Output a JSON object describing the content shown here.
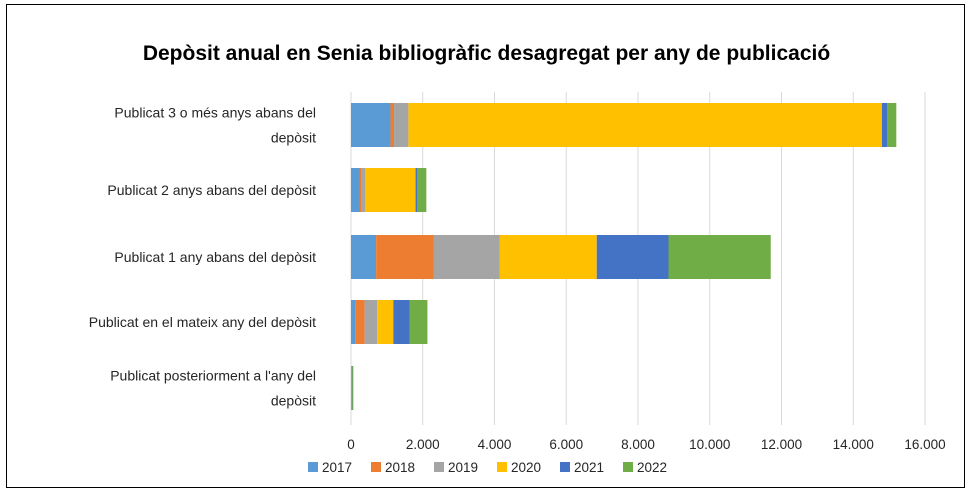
{
  "chart_data": {
    "type": "bar",
    "orientation": "horizontal",
    "stacked": true,
    "title": "Depòsit anual en Senia bibliogràfic desagregat per any de publicació",
    "categories": [
      [
        "Publicat 3 o més anys abans del",
        "depòsit"
      ],
      [
        "Publicat 2 anys abans del depòsit"
      ],
      [
        "Publicat 1 any abans del depòsit"
      ],
      [
        "Publicat en el mateix any del depòsit"
      ],
      [
        "Publicat posteriorment a l'any del",
        "depòsit"
      ]
    ],
    "series": [
      {
        "name": "2017",
        "color": "#5b9bd5",
        "values": [
          1100,
          250,
          700,
          130,
          10
        ]
      },
      {
        "name": "2018",
        "color": "#ed7d31",
        "values": [
          100,
          50,
          1600,
          250,
          5
        ]
      },
      {
        "name": "2019",
        "color": "#a5a5a5",
        "values": [
          400,
          100,
          1850,
          350,
          5
        ]
      },
      {
        "name": "2020",
        "color": "#ffc000",
        "values": [
          13200,
          1400,
          2700,
          450,
          10
        ]
      },
      {
        "name": "2021",
        "color": "#4472c4",
        "values": [
          150,
          50,
          2000,
          450,
          5
        ]
      },
      {
        "name": "2022",
        "color": "#70ad47",
        "values": [
          250,
          250,
          2850,
          500,
          30
        ]
      }
    ],
    "xlim": [
      0,
      16000
    ],
    "xticks": [
      0,
      2000,
      4000,
      6000,
      8000,
      10000,
      12000,
      14000,
      16000
    ],
    "xtick_labels": [
      "0",
      "2.000",
      "4.000",
      "6.000",
      "8.000",
      "10.000",
      "12.000",
      "14.000",
      "16.000"
    ],
    "grid": true,
    "legend_position": "bottom"
  }
}
